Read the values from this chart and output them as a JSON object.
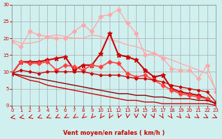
{
  "x": [
    0,
    1,
    2,
    3,
    4,
    5,
    6,
    7,
    8,
    9,
    10,
    11,
    12,
    13,
    14,
    15,
    16,
    17,
    18,
    19,
    20,
    21,
    22,
    23
  ],
  "lines": [
    {
      "y": [
        19.5,
        18.5,
        18.5,
        19.0,
        20.5,
        21.0,
        20.5,
        20.0,
        20.0,
        21.0,
        20.5,
        19.5,
        19.0,
        18.0,
        17.5,
        16.5,
        15.5,
        14.5,
        13.5,
        12.5,
        11.5,
        10.5,
        9.5,
        4.5
      ],
      "color": "#ffaaaa",
      "linewidth": 1.0,
      "marker": null,
      "markersize": 0,
      "linestyle": "-"
    },
    {
      "y": [
        19.0,
        17.5,
        22.0,
        21.0,
        20.5,
        20.0,
        20.0,
        22.0,
        24.0,
        22.0,
        26.5,
        27.0,
        28.5,
        24.5,
        21.5,
        15.0,
        15.5,
        14.0,
        11.0,
        10.5,
        10.5,
        8.0,
        12.0,
        4.0
      ],
      "color": "#ffaaaa",
      "linewidth": 1.0,
      "marker": "D",
      "markersize": 3,
      "linestyle": "-"
    },
    {
      "y": [
        9.5,
        13.0,
        13.0,
        13.0,
        13.5,
        14.0,
        14.5,
        10.5,
        12.0,
        12.0,
        15.5,
        21.5,
        15.0,
        14.5,
        13.5,
        10.5,
        8.5,
        9.0,
        5.0,
        4.0,
        3.5,
        3.0,
        2.0,
        0.5
      ],
      "color": "#cc0000",
      "linewidth": 1.5,
      "marker": "*",
      "markersize": 5,
      "linestyle": "-"
    },
    {
      "y": [
        9.5,
        13.0,
        12.5,
        12.5,
        13.0,
        10.5,
        12.0,
        11.5,
        10.5,
        12.0,
        11.5,
        13.0,
        12.5,
        9.5,
        8.5,
        9.0,
        7.5,
        6.0,
        4.5,
        3.5,
        3.0,
        2.5,
        2.0,
        0.5
      ],
      "color": "#ff4444",
      "linewidth": 1.2,
      "marker": "D",
      "markersize": 3,
      "linestyle": "-"
    },
    {
      "y": [
        9.5,
        10.5,
        10.0,
        9.5,
        10.0,
        10.0,
        10.0,
        10.0,
        10.0,
        9.5,
        9.0,
        9.0,
        9.0,
        8.5,
        8.0,
        8.0,
        7.5,
        7.0,
        6.0,
        5.5,
        5.0,
        4.5,
        4.0,
        1.0
      ],
      "color": "#cc0000",
      "linewidth": 1.0,
      "marker": "D",
      "markersize": 2,
      "linestyle": "-"
    },
    {
      "y": [
        9.5,
        9.0,
        8.5,
        8.0,
        7.5,
        7.0,
        6.5,
        6.0,
        5.5,
        5.0,
        4.5,
        4.0,
        3.5,
        3.5,
        3.0,
        3.0,
        2.5,
        2.5,
        2.0,
        2.0,
        2.0,
        1.5,
        1.5,
        0.5
      ],
      "color": "#880000",
      "linewidth": 1.0,
      "marker": null,
      "markersize": 0,
      "linestyle": "-"
    },
    {
      "y": [
        9.5,
        8.5,
        7.5,
        7.0,
        6.0,
        5.5,
        5.0,
        4.5,
        4.0,
        3.5,
        3.0,
        2.5,
        2.0,
        1.5,
        1.5,
        1.0,
        1.0,
        0.5,
        0.5,
        0.5,
        0.5,
        0.5,
        0.5,
        0.0
      ],
      "color": "#cc0000",
      "linewidth": 1.0,
      "marker": null,
      "markersize": 0,
      "linestyle": "-"
    }
  ],
  "xlabel": "Vent moyen/en rafales ( km/h )",
  "ylabel": "",
  "xlim": [
    0,
    23
  ],
  "ylim": [
    0,
    30
  ],
  "yticks": [
    0,
    5,
    10,
    15,
    20,
    25,
    30
  ],
  "xticks": [
    0,
    1,
    2,
    3,
    4,
    5,
    6,
    7,
    8,
    9,
    10,
    11,
    12,
    13,
    14,
    15,
    16,
    17,
    18,
    19,
    20,
    21,
    22,
    23
  ],
  "background_color": "#d0f0f0",
  "grid_color": "#aaaaaa",
  "xlabel_color": "#cc0000",
  "tick_color": "#cc0000",
  "arrow_color": "#cc0000"
}
